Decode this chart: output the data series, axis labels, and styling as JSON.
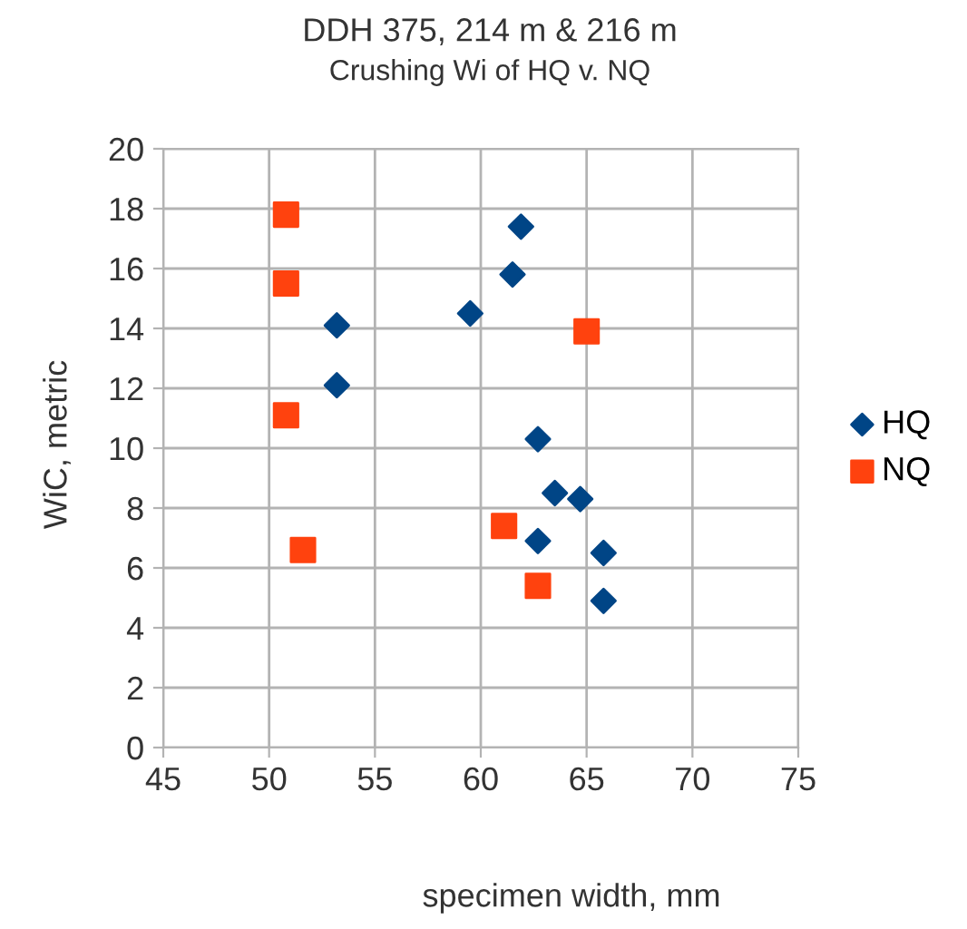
{
  "chart_data": {
    "type": "scatter",
    "title": "DDH 375, 214 m & 216 m",
    "subtitle": "Crushing Wi of HQ v. NQ",
    "xlabel": "specimen width, mm",
    "ylabel": "WiC, metric",
    "xlim": [
      45,
      75
    ],
    "xticks": [
      45,
      50,
      55,
      60,
      65,
      70,
      75
    ],
    "ylim": [
      0,
      20
    ],
    "yticks": [
      0,
      2,
      4,
      6,
      8,
      10,
      12,
      14,
      16,
      18,
      20
    ],
    "grid": true,
    "legend": "right",
    "series": [
      {
        "name": "HQ",
        "color": "#004586",
        "marker": "diamond",
        "x": [
          53.2,
          53.2,
          59.5,
          61.5,
          61.9,
          62.7,
          63.5,
          64.7,
          62.7,
          65.8,
          65.8
        ],
        "values": [
          14.1,
          12.1,
          14.5,
          15.8,
          17.4,
          10.3,
          8.5,
          8.3,
          6.9,
          6.5,
          4.9
        ]
      },
      {
        "name": "NQ",
        "color": "#ff420e",
        "marker": "square",
        "x": [
          50.8,
          50.8,
          65.0,
          50.8,
          51.6,
          61.1,
          62.7
        ],
        "values": [
          17.8,
          15.5,
          13.9,
          11.1,
          6.6,
          7.4,
          5.4
        ]
      }
    ]
  }
}
